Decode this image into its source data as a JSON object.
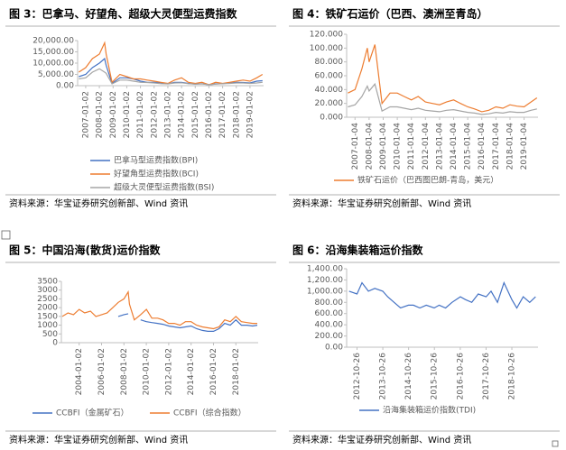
{
  "chart_data": [
    {
      "type": "line",
      "title": "图 3：巴拿马、好望角、超级大灵便型运费指数",
      "source": "资料来源：华宝证券研究创新部、Wind 资讯",
      "x": [
        "2006-07-03",
        "2007-01-02",
        "2007-07-02",
        "2008-01-02",
        "2008-05-20",
        "2008-07-01",
        "2008-12-05",
        "2009-07-01",
        "2010-01-04",
        "2010-07-01",
        "2011-01-04",
        "2011-07-01",
        "2012-01-04",
        "2012-07-02",
        "2013-01-04",
        "2013-07-01",
        "2014-01-02",
        "2014-07-01",
        "2015-01-05",
        "2015-07-01",
        "2016-01-04",
        "2016-07-01",
        "2017-01-03",
        "2017-07-03",
        "2018-01-02",
        "2018-07-02",
        "2019-01-02",
        "2019-07-01",
        "2019-12-02"
      ],
      "xlim": [
        "2006-06-01",
        "2019-12-31"
      ],
      "xticks": [
        "2007-01-02",
        "2008-01-02",
        "2009-01-02",
        "2010-01-02",
        "2011-01-02",
        "2012-01-02",
        "2013-01-02",
        "2014-01-02",
        "2015-01-02",
        "2016-01-02",
        "2017-01-02",
        "2018-01-02",
        "2019-01-02"
      ],
      "ylim": [
        0,
        20000
      ],
      "yticks": [
        {
          "value": 0,
          "label": "0.00"
        },
        {
          "value": 5000,
          "label": "5,000.00"
        },
        {
          "value": 10000,
          "label": "10,000.00"
        },
        {
          "value": 15000,
          "label": "15,000.00"
        },
        {
          "value": 20000,
          "label": "20,000.00"
        }
      ],
      "series": [
        {
          "name": "巴拿马型运费指数(BPI)",
          "color": "#4472c4",
          "values": [
            4000,
            5000,
            8000,
            10000,
            12000,
            9000,
            1000,
            3500,
            3500,
            3000,
            2000,
            1500,
            1500,
            1300,
            800,
            1500,
            1500,
            1000,
            700,
            900,
            400,
            800,
            900,
            1200,
            1500,
            1400,
            1200,
            2000,
            2200
          ]
        },
        {
          "name": "好望角型运费指数(BCI)",
          "color": "#ed7d31",
          "values": [
            6000,
            8000,
            12000,
            14000,
            19000,
            14000,
            1500,
            5000,
            4000,
            3000,
            3000,
            2500,
            2000,
            1500,
            1000,
            2500,
            3500,
            1500,
            1000,
            1500,
            400,
            1500,
            1000,
            1500,
            2000,
            2500,
            2000,
            3500,
            5000
          ]
        },
        {
          "name": "超级大灵便型运费指数(BSI)",
          "color": "#a5a5a5",
          "values": [
            3000,
            3500,
            6000,
            7500,
            6000,
            5500,
            800,
            2500,
            2500,
            2000,
            1500,
            1400,
            1200,
            900,
            800,
            1200,
            1300,
            900,
            700,
            800,
            400,
            700,
            900,
            1000,
            1200,
            1200,
            1000,
            1200,
            1500
          ]
        }
      ]
    },
    {
      "type": "line",
      "title": "图 4：铁矿石运价（巴西、澳洲至青岛）",
      "source": "资料来源：华宝证券研究创新部、Wind 资讯",
      "x": [
        "2006-07-03",
        "2007-01-04",
        "2007-07-02",
        "2007-11-20",
        "2008-01-04",
        "2008-06-02",
        "2008-12-05",
        "2009-07-01",
        "2010-01-04",
        "2010-07-01",
        "2011-01-04",
        "2011-07-01",
        "2012-01-04",
        "2012-07-02",
        "2013-01-04",
        "2013-07-01",
        "2014-01-02",
        "2014-07-01",
        "2015-01-05",
        "2015-07-01",
        "2016-01-04",
        "2016-07-01",
        "2017-01-03",
        "2017-07-03",
        "2018-01-02",
        "2018-07-02",
        "2019-01-02",
        "2019-07-01",
        "2019-12-02"
      ],
      "xlim": [
        "2006-06-01",
        "2019-12-31"
      ],
      "xticks": [
        "2007-01-04",
        "2008-01-04",
        "2009-01-04",
        "2010-01-04",
        "2011-01-04",
        "2012-01-04",
        "2013-01-04",
        "2014-01-04",
        "2015-01-04",
        "2016-01-04",
        "2017-01-04",
        "2018-01-04",
        "2019-01-04"
      ],
      "ylim": [
        0,
        120
      ],
      "yticks": [
        {
          "value": 0,
          "label": "0.000"
        },
        {
          "value": 20,
          "label": "20.000"
        },
        {
          "value": 40,
          "label": "40.000"
        },
        {
          "value": 60,
          "label": "60.000"
        },
        {
          "value": 80,
          "label": "80.000"
        },
        {
          "value": 100,
          "label": "100.000"
        },
        {
          "value": 120,
          "label": "120.000"
        }
      ],
      "series": [
        {
          "name": "铁矿石运价（巴西图巴朗-青岛，美元）",
          "color": "#ed7d31",
          "values": [
            35,
            40,
            70,
            100,
            80,
            105,
            20,
            35,
            35,
            30,
            25,
            30,
            22,
            20,
            18,
            22,
            25,
            20,
            15,
            12,
            8,
            10,
            15,
            13,
            18,
            16,
            15,
            22,
            28
          ]
        },
        {
          "color": "#a5a5a5",
          "values": [
            15,
            18,
            30,
            45,
            38,
            48,
            9,
            15,
            15,
            13,
            11,
            13,
            10,
            9,
            8,
            10,
            11,
            9,
            7,
            6,
            4,
            5,
            7,
            6,
            8,
            7,
            7,
            10,
            12
          ]
        }
      ]
    },
    {
      "type": "line",
      "title": "图 5：中国沿海(散货)运价指数",
      "source": "资料来源：华宝证券研究创新部、Wind 资讯",
      "x": [
        "2002-07-01",
        "2003-01-02",
        "2003-07-01",
        "2004-01-02",
        "2004-07-01",
        "2005-01-04",
        "2005-07-01",
        "2006-01-04",
        "2006-07-03",
        "2007-01-04",
        "2007-07-02",
        "2008-01-02",
        "2008-05-20",
        "2008-07-01",
        "2008-12-05",
        "2009-07-01",
        "2010-01-04",
        "2010-07-01",
        "2011-01-04",
        "2011-07-01",
        "2012-01-04",
        "2012-07-02",
        "2013-01-04",
        "2013-07-01",
        "2014-01-02",
        "2014-07-01",
        "2015-01-05",
        "2015-07-01",
        "2016-01-04",
        "2016-07-01",
        "2017-01-03",
        "2017-07-03",
        "2018-01-02",
        "2018-07-02",
        "2019-01-02",
        "2019-07-01",
        "2019-12-02"
      ],
      "xlim": [
        "2002-06-01",
        "2019-12-31"
      ],
      "xticks": [
        "2004-01-02",
        "2006-01-02",
        "2008-01-02",
        "2010-01-02",
        "2012-01-02",
        "2014-01-02",
        "2016-01-02",
        "2018-01-02"
      ],
      "ylim": [
        0,
        3500
      ],
      "yticks": [
        0,
        500,
        1000,
        1500,
        2000,
        2500,
        3000,
        3500
      ],
      "series": [
        {
          "name": "CCBFI（金属矿石）",
          "color": "#4472c4",
          "values": [
            null,
            null,
            null,
            null,
            null,
            null,
            null,
            null,
            null,
            null,
            1500,
            1600,
            1650,
            null,
            null,
            1300,
            1200,
            1150,
            1100,
            1050,
            950,
            900,
            850,
            900,
            950,
            800,
            700,
            650,
            650,
            800,
            1100,
            1000,
            1300,
            1000,
            1000,
            950,
            1000
          ]
        },
        {
          "name": "CCBFI（综合指数）",
          "color": "#ed7d31",
          "values": [
            1500,
            1700,
            1600,
            1900,
            1700,
            1800,
            1500,
            1600,
            1700,
            2000,
            2300,
            2500,
            2900,
            2200,
            1300,
            1600,
            1900,
            1400,
            1400,
            1300,
            1100,
            1100,
            1000,
            1200,
            1200,
            1000,
            900,
            850,
            800,
            900,
            1300,
            1200,
            1500,
            1200,
            1150,
            1100,
            1100
          ]
        }
      ]
    },
    {
      "type": "line",
      "title": "图 6：沿海集装箱运价指数",
      "source": "资料来源：华宝证券研究创新部、Wind 资讯",
      "x": [
        "2012-07-06",
        "2012-10-26",
        "2013-01-04",
        "2013-04-05",
        "2013-07-05",
        "2013-10-25",
        "2014-01-03",
        "2014-04-04",
        "2014-07-04",
        "2014-10-24",
        "2015-01-02",
        "2015-04-03",
        "2015-07-03",
        "2015-10-23",
        "2016-01-01",
        "2016-04-01",
        "2016-07-01",
        "2016-10-28",
        "2017-01-06",
        "2017-04-07",
        "2017-07-07",
        "2017-10-27",
        "2018-01-05",
        "2018-04-06",
        "2018-07-06",
        "2018-10-26",
        "2019-01-04",
        "2019-04-05",
        "2019-07-05",
        "2019-09-27"
      ],
      "xlim": [
        "2012-06-01",
        "2019-10-31"
      ],
      "xticks": [
        "2012-10-26",
        "2013-10-26",
        "2014-10-26",
        "2015-10-26",
        "2016-10-26",
        "2017-10-26",
        "2018-10-26"
      ],
      "ylim": [
        0,
        1400
      ],
      "yticks": [
        {
          "value": 0,
          "label": "0.00"
        },
        {
          "value": 200,
          "label": "200.00"
        },
        {
          "value": 400,
          "label": "400.00"
        },
        {
          "value": 600,
          "label": "600.00"
        },
        {
          "value": 800,
          "label": "800.00"
        },
        {
          "value": 1000,
          "label": "1,000.00"
        },
        {
          "value": 1200,
          "label": "1,200.00"
        },
        {
          "value": 1400,
          "label": "1,400.00"
        }
      ],
      "series": [
        {
          "name": "沿海集装箱运价指数(TDI)",
          "color": "#4472c4",
          "values": [
            1000,
            950,
            1150,
            1000,
            1050,
            1000,
            900,
            800,
            700,
            750,
            750,
            700,
            750,
            700,
            750,
            700,
            800,
            900,
            850,
            800,
            950,
            900,
            1000,
            800,
            1150,
            850,
            700,
            900,
            800,
            900
          ]
        }
      ]
    }
  ]
}
